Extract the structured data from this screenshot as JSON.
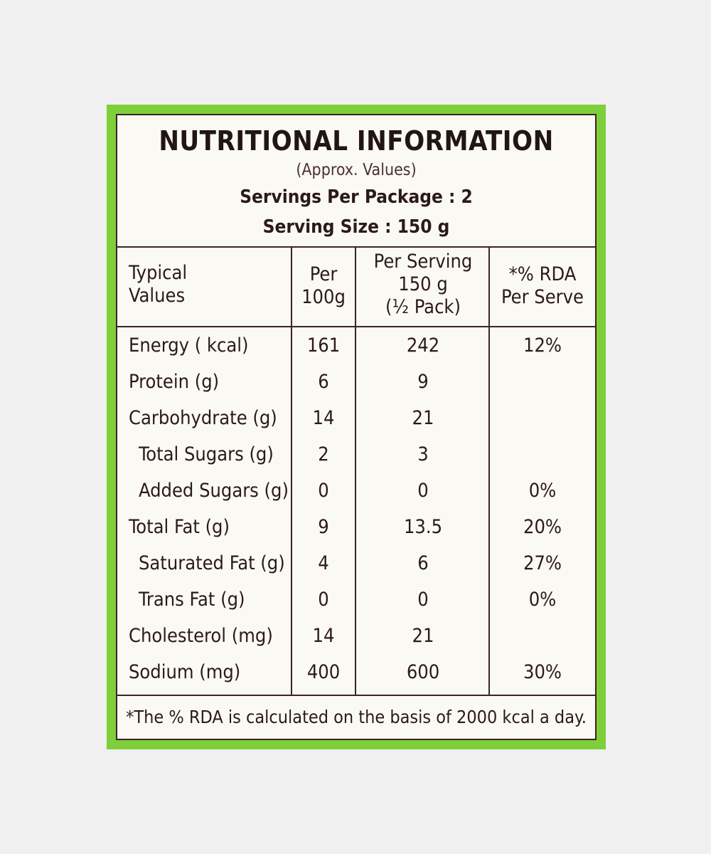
{
  "label": {
    "title": "NUTRITIONAL INFORMATION",
    "subtitle": "(Approx. Values)",
    "servings_per_package": "Servings Per Package : 2",
    "serving_size": "Serving Size : 150 g"
  },
  "table": {
    "headers": {
      "typical": [
        "Typical",
        "Values"
      ],
      "per_100g": [
        "Per",
        "100g"
      ],
      "per_serving": [
        "Per Serving",
        "150 g",
        "(½ Pack)"
      ],
      "rda": [
        "*% RDA",
        "Per Serve"
      ]
    },
    "rows": [
      {
        "name": "Energy ( kcal)",
        "per_100g": "161",
        "per_serving": "242",
        "rda": "12%",
        "indent": false
      },
      {
        "name": "Protein (g)",
        "per_100g": "6",
        "per_serving": "9",
        "rda": "",
        "indent": false
      },
      {
        "name": "Carbohydrate (g)",
        "per_100g": "14",
        "per_serving": "21",
        "rda": "",
        "indent": false
      },
      {
        "name": "Total Sugars (g)",
        "per_100g": "2",
        "per_serving": "3",
        "rda": "",
        "indent": true
      },
      {
        "name": "Added Sugars (g)",
        "per_100g": "0",
        "per_serving": "0",
        "rda": "0%",
        "indent": true
      },
      {
        "name": "Total Fat (g)",
        "per_100g": "9",
        "per_serving": "13.5",
        "rda": "20%",
        "indent": false
      },
      {
        "name": "Saturated Fat (g)",
        "per_100g": "4",
        "per_serving": "6",
        "rda": "27%",
        "indent": true
      },
      {
        "name": "Trans Fat (g)",
        "per_100g": "0",
        "per_serving": "0",
        "rda": "0%",
        "indent": true
      },
      {
        "name": "Cholesterol (mg)",
        "per_100g": "14",
        "per_serving": "21",
        "rda": "",
        "indent": false
      },
      {
        "name": "Sodium (mg)",
        "per_100g": "400",
        "per_serving": "600",
        "rda": "30%",
        "indent": false
      }
    ]
  },
  "footnote": "*The % RDA is calculated on the basis of 2000 kcal a day.",
  "colors": {
    "border_green": "#7fcf3a",
    "label_bg": "#fbf9f4",
    "text": "#2b1a1a",
    "page_bg": "#f0f0f0"
  }
}
